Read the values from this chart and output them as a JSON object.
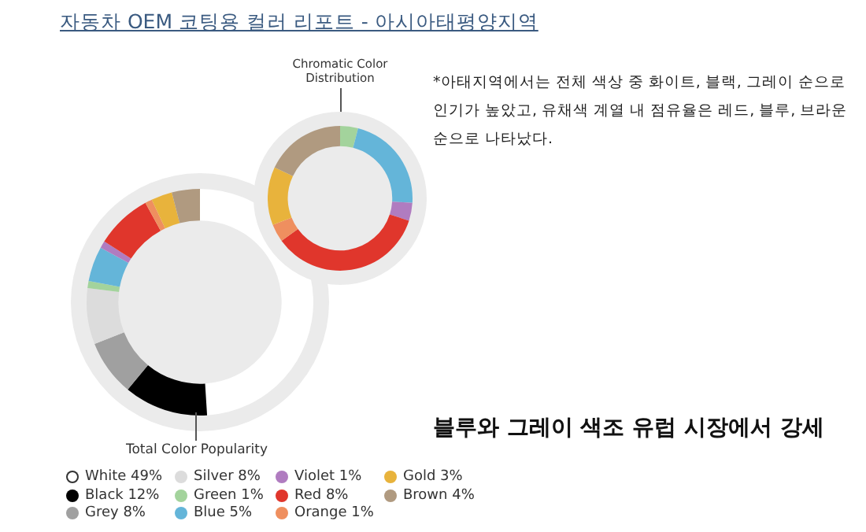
{
  "chart_data": [
    {
      "type": "donut",
      "title": "자동차 OEM 코팅용 컬러 리포트 - 아시아태평양지역",
      "categories": [
        "White",
        "Black",
        "Grey",
        "Silver",
        "Green",
        "Blue",
        "Violet",
        "Red",
        "Orange",
        "Gold",
        "Brown"
      ],
      "values": [
        49,
        12,
        8,
        8,
        1,
        5,
        1,
        8,
        1,
        3,
        4
      ],
      "value_labels": [
        "49%",
        "12%",
        "8%",
        "8%",
        "1%",
        "5%",
        "1%",
        "8%",
        "1%",
        "3%",
        "4%"
      ],
      "colors": [
        "#ffffff",
        "#000000",
        "#a0a0a0",
        "#dcdcdc",
        "#a3d39c",
        "#64b5d9",
        "#b07cc0",
        "#e0362c",
        "#ef8f5f",
        "#e8b33c",
        "#b09a80"
      ],
      "legend": "bottom",
      "annotations": [
        "Total Color Popularity",
        "*아태지역에서는 전체 색상 중 화이트, 블랙, 그레이 순으로 인기가 높았고, 유채색 계열 내 점유율은 레드, 블루, 브라운 순으로 나타났다.",
        "블루와 그레이 색조 유럽 시장에서 강세"
      ]
    },
    {
      "type": "donut",
      "title": "Chromatic Color Distribution",
      "categories": [
        null,
        null,
        null,
        null,
        null,
        null,
        null
      ],
      "values": [
        4,
        22,
        4,
        35,
        4,
        13,
        18
      ],
      "colors": [
        "#a3d39c",
        "#64b5d9",
        "#b07cc0",
        "#e0362c",
        "#ef8f5f",
        "#e8b33c",
        "#b09a80"
      ]
    }
  ]
}
